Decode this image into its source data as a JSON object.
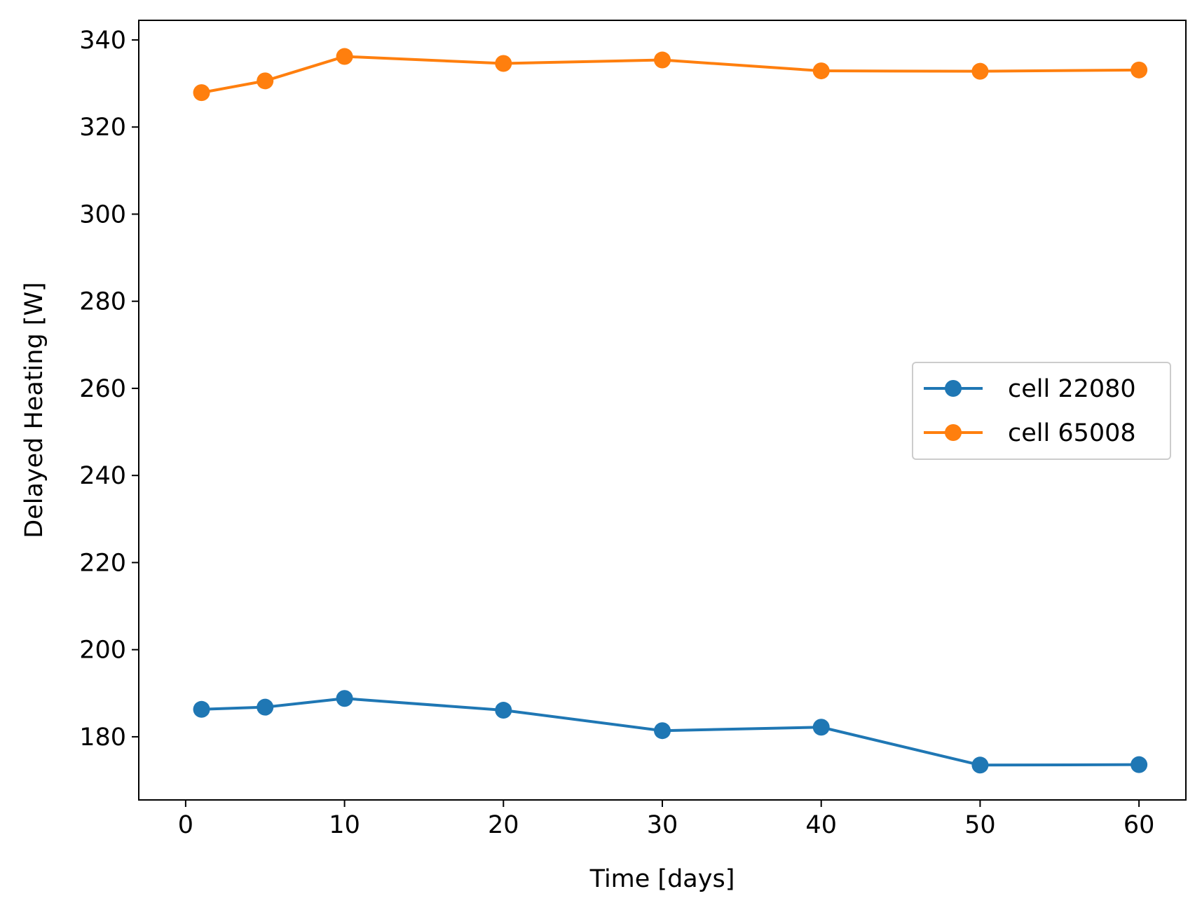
{
  "chart_data": {
    "type": "line",
    "xlabel": "Time [days]",
    "ylabel": "Delayed Heating [W]",
    "xlim": [
      -2.95,
      62.95
    ],
    "ylim": [
      165.5,
      344.5
    ],
    "xticks": [
      0,
      10,
      20,
      30,
      40,
      50,
      60
    ],
    "yticks": [
      180,
      200,
      220,
      240,
      260,
      280,
      300,
      320,
      340
    ],
    "grid": false,
    "legend_position": "center-right",
    "marker": "circle",
    "series": [
      {
        "name": "cell 22080",
        "color": "#1f77b4",
        "x": [
          1,
          5,
          10,
          20,
          30,
          40,
          50,
          60
        ],
        "y": [
          186.3,
          186.8,
          188.8,
          186.1,
          181.4,
          182.2,
          173.5,
          173.6
        ]
      },
      {
        "name": "cell 65008",
        "color": "#ff7f0e",
        "x": [
          1,
          5,
          10,
          20,
          30,
          40,
          50,
          60
        ],
        "y": [
          327.9,
          330.6,
          336.2,
          334.6,
          335.4,
          332.9,
          332.8,
          333.1
        ]
      }
    ]
  }
}
